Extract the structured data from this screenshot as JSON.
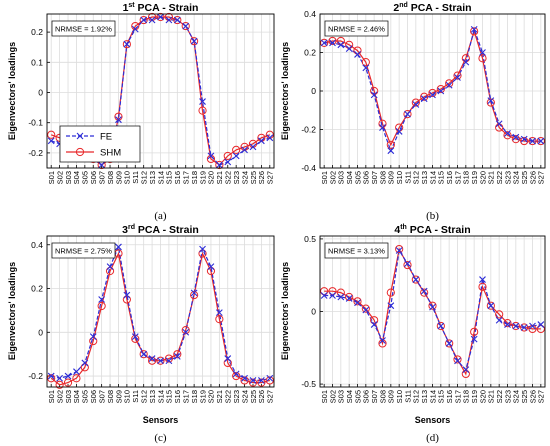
{
  "colors": {
    "fe": "#2d2dd6",
    "shm": "#e8282a",
    "grid": "#dcdcdc"
  },
  "legend": {
    "fe_label": "FE",
    "shm_label": "SHM"
  },
  "chart_data": [
    {
      "type": "line",
      "title_sup": "st",
      "title_main": "1",
      "title_rest": " PCA - Strain",
      "panel_label": "(a)",
      "nrmse": "NRMSE = 1.92%",
      "xlabel": "",
      "ylabel": "Eigenvectors' loadings",
      "ylim": [
        -0.25,
        0.26
      ],
      "yticks": [
        -0.2,
        -0.1,
        0,
        0.1,
        0.2
      ],
      "ytick_labels": [
        "-0.2",
        "-0.1",
        "0",
        "0.1",
        "0.2"
      ],
      "categories": [
        "S01",
        "S02",
        "S03",
        "S04",
        "S05",
        "S06",
        "S07",
        "S08",
        "S09",
        "S10",
        "S11",
        "S12",
        "S13",
        "S14",
        "S15",
        "S16",
        "S17",
        "S18",
        "S19",
        "S20",
        "S21",
        "S22",
        "S23",
        "S24",
        "S25",
        "S26",
        "S27"
      ],
      "series": [
        {
          "name": "FE",
          "values": [
            -0.16,
            -0.17,
            -0.18,
            -0.19,
            -0.2,
            -0.22,
            -0.24,
            -0.2,
            -0.09,
            0.16,
            0.21,
            0.24,
            0.24,
            0.25,
            0.24,
            0.24,
            0.22,
            0.17,
            -0.03,
            -0.21,
            -0.24,
            -0.23,
            -0.21,
            -0.19,
            -0.18,
            -0.16,
            -0.15
          ]
        },
        {
          "name": "SHM",
          "values": [
            -0.14,
            -0.15,
            -0.16,
            -0.18,
            -0.2,
            -0.22,
            -0.24,
            -0.22,
            -0.08,
            0.16,
            0.22,
            0.24,
            0.25,
            0.25,
            0.25,
            0.24,
            0.22,
            0.17,
            -0.06,
            -0.22,
            -0.24,
            -0.21,
            -0.19,
            -0.18,
            -0.17,
            -0.15,
            -0.14
          ]
        }
      ]
    },
    {
      "type": "line",
      "title_sup": "nd",
      "title_main": "2",
      "title_rest": " PCA - Strain",
      "panel_label": "(b)",
      "nrmse": "NRMSE = 2.46%",
      "xlabel": "",
      "ylabel": "Eigenvectors' loadings",
      "ylim": [
        -0.4,
        0.4
      ],
      "yticks": [
        -0.4,
        -0.2,
        0,
        0.2,
        0.4
      ],
      "ytick_labels": [
        "-0.4",
        "-0.2",
        "0",
        "0.2",
        "0.4"
      ],
      "categories": [
        "S01",
        "S02",
        "S03",
        "S04",
        "S05",
        "S06",
        "S07",
        "S08",
        "S09",
        "S10",
        "S11",
        "S12",
        "S13",
        "S14",
        "S15",
        "S16",
        "S17",
        "S18",
        "S19",
        "S20",
        "S21",
        "S22",
        "S23",
        "S24",
        "S25",
        "S26",
        "S27"
      ],
      "series": [
        {
          "name": "FE",
          "values": [
            0.25,
            0.25,
            0.24,
            0.22,
            0.19,
            0.12,
            -0.02,
            -0.19,
            -0.31,
            -0.21,
            -0.12,
            -0.07,
            -0.04,
            -0.02,
            0.0,
            0.03,
            0.07,
            0.15,
            0.32,
            0.2,
            -0.05,
            -0.17,
            -0.22,
            -0.24,
            -0.25,
            -0.26,
            -0.26
          ]
        },
        {
          "name": "SHM",
          "values": [
            0.25,
            0.26,
            0.26,
            0.24,
            0.21,
            0.15,
            0.0,
            -0.17,
            -0.28,
            -0.19,
            -0.12,
            -0.06,
            -0.03,
            -0.01,
            0.01,
            0.04,
            0.08,
            0.17,
            0.31,
            0.17,
            -0.06,
            -0.19,
            -0.23,
            -0.25,
            -0.26,
            -0.26,
            -0.26
          ]
        }
      ]
    },
    {
      "type": "line",
      "title_sup": "rd",
      "title_main": "3",
      "title_rest": " PCA - Strain",
      "panel_label": "(c)",
      "nrmse": "NRMSE = 2.75%",
      "xlabel": "Sensors",
      "ylabel": "Eigenvectors' loadings",
      "ylim": [
        -0.25,
        0.44
      ],
      "yticks": [
        -0.2,
        0,
        0.2,
        0.4
      ],
      "ytick_labels": [
        "-0.2",
        "0",
        "0.2",
        "0.4"
      ],
      "categories": [
        "S01",
        "S02",
        "S03",
        "S04",
        "S05",
        "S06",
        "S07",
        "S08",
        "S09",
        "S10",
        "S11",
        "S12",
        "S13",
        "S14",
        "S15",
        "S16",
        "S17",
        "S18",
        "S19",
        "S20",
        "S21",
        "S22",
        "S23",
        "S24",
        "S25",
        "S26",
        "S27"
      ],
      "series": [
        {
          "name": "FE",
          "values": [
            -0.2,
            -0.21,
            -0.2,
            -0.18,
            -0.14,
            -0.02,
            0.15,
            0.3,
            0.39,
            0.17,
            -0.02,
            -0.1,
            -0.12,
            -0.13,
            -0.13,
            -0.11,
            0.0,
            0.18,
            0.38,
            0.3,
            0.09,
            -0.12,
            -0.19,
            -0.21,
            -0.22,
            -0.22,
            -0.21
          ]
        },
        {
          "name": "SHM",
          "values": [
            -0.21,
            -0.24,
            -0.23,
            -0.21,
            -0.16,
            -0.04,
            0.12,
            0.28,
            0.36,
            0.15,
            -0.03,
            -0.1,
            -0.13,
            -0.13,
            -0.12,
            -0.1,
            0.01,
            0.17,
            0.36,
            0.28,
            0.06,
            -0.14,
            -0.2,
            -0.22,
            -0.23,
            -0.23,
            -0.22
          ]
        }
      ]
    },
    {
      "type": "line",
      "title_sup": "th",
      "title_main": "4",
      "title_rest": " PCA - Strain",
      "panel_label": "(d)",
      "nrmse": "NRMSE = 3.13%",
      "xlabel": "Sensors",
      "ylabel": "Eigenvectors' loadings",
      "ylim": [
        -0.52,
        0.52
      ],
      "yticks": [
        -0.5,
        0,
        0.5
      ],
      "ytick_labels": [
        "-0.5",
        "0",
        "0.5"
      ],
      "categories": [
        "S01",
        "S02",
        "S03",
        "S04",
        "S05",
        "S06",
        "S07",
        "S08",
        "S09",
        "S10",
        "S11",
        "S12",
        "S13",
        "S14",
        "S15",
        "S16",
        "S17",
        "S18",
        "S19",
        "S20",
        "S21",
        "S22",
        "S23",
        "S24",
        "S25",
        "S26",
        "S27"
      ],
      "series": [
        {
          "name": "FE",
          "values": [
            0.11,
            0.11,
            0.1,
            0.09,
            0.06,
            0.01,
            -0.09,
            -0.2,
            0.04,
            0.42,
            0.33,
            0.22,
            0.14,
            0.03,
            -0.1,
            -0.22,
            -0.34,
            -0.4,
            -0.19,
            0.22,
            0.04,
            -0.06,
            -0.09,
            -0.1,
            -0.11,
            -0.1,
            -0.09
          ]
        },
        {
          "name": "SHM",
          "values": [
            0.14,
            0.14,
            0.13,
            0.1,
            0.07,
            0.02,
            -0.06,
            -0.22,
            0.13,
            0.43,
            0.32,
            0.22,
            0.13,
            0.04,
            -0.1,
            -0.22,
            -0.33,
            -0.43,
            -0.14,
            0.17,
            0.04,
            -0.02,
            -0.08,
            -0.1,
            -0.11,
            -0.12,
            -0.12
          ]
        }
      ]
    }
  ]
}
